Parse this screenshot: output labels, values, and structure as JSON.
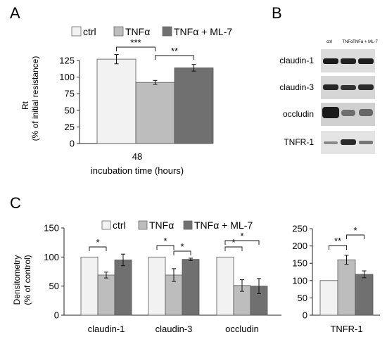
{
  "panel_labels": {
    "a": "A",
    "b": "B",
    "c": "C"
  },
  "colors": {
    "ctrl": "#f2f2f2",
    "tnf": "#bdbdbd",
    "ml7": "#707070",
    "axis": "#222222"
  },
  "legend": [
    "ctrl",
    "TNFα",
    "TNFα + ML-7"
  ],
  "blot": {
    "lane_labels": [
      "ctrl",
      "TNFα",
      "TNFα + ML-7"
    ],
    "rows": [
      "claudin-1",
      "claudin-3",
      "occludin",
      "TNFR-1"
    ]
  },
  "chart_data": [
    {
      "type": "bar",
      "panel": "A",
      "categories": [
        "48"
      ],
      "xlabel": "incubation time (hours)",
      "ylabel_main": "Rt",
      "ylabel_sub": "(% of initial resistance)",
      "ylim": [
        0,
        125
      ],
      "yticks": [
        "0",
        "25",
        "50",
        "75",
        "100",
        "125"
      ],
      "series": [
        {
          "name": "ctrl",
          "values": [
            127
          ],
          "errors": [
            7
          ]
        },
        {
          "name": "TNFα",
          "values": [
            92
          ],
          "errors": [
            3
          ]
        },
        {
          "name": "TNFα + ML-7",
          "values": [
            114
          ],
          "errors": [
            5
          ]
        }
      ],
      "significance": [
        {
          "from": 0,
          "to": 1,
          "label": "***"
        },
        {
          "from": 1,
          "to": 2,
          "label": "**"
        }
      ],
      "legend_position": "top"
    },
    {
      "type": "bar",
      "panel": "C",
      "categories": [
        "claudin-1",
        "claudin-3",
        "occludin"
      ],
      "ylabel_main": "Densitometry",
      "ylabel_sub": "(% of control)",
      "ylim": [
        0,
        150
      ],
      "yticks": [
        "0",
        "50",
        "100",
        "150"
      ],
      "series": [
        {
          "name": "ctrl",
          "values": [
            100,
            100,
            100
          ],
          "errors": [
            0,
            0,
            0
          ]
        },
        {
          "name": "TNFα",
          "values": [
            69,
            69,
            51
          ],
          "errors": [
            5,
            11,
            10
          ]
        },
        {
          "name": "TNFα + ML-7",
          "values": [
            95,
            96,
            50
          ],
          "errors": [
            10,
            2,
            13
          ]
        }
      ],
      "significance": [
        {
          "category": 0,
          "from": 0,
          "to": 1,
          "label": "*"
        },
        {
          "category": 1,
          "from": 0,
          "to": 1,
          "label": "*"
        },
        {
          "category": 1,
          "from": 1,
          "to": 2,
          "label": "*"
        },
        {
          "category": 2,
          "from": 0,
          "to": 1,
          "label": "*"
        },
        {
          "category": 2,
          "from": 0,
          "to": 2,
          "label": "*"
        }
      ],
      "legend_position": "top"
    },
    {
      "type": "bar",
      "panel": "C",
      "categories": [
        "TNFR-1"
      ],
      "ylim": [
        0,
        250
      ],
      "yticks": [
        "0",
        "50",
        "100",
        "150",
        "200",
        "250"
      ],
      "series": [
        {
          "name": "ctrl",
          "values": [
            100
          ],
          "errors": [
            0
          ]
        },
        {
          "name": "TNFα",
          "values": [
            160
          ],
          "errors": [
            13
          ]
        },
        {
          "name": "TNFα + ML-7",
          "values": [
            118
          ],
          "errors": [
            10
          ]
        }
      ],
      "significance": [
        {
          "category": 0,
          "from": 0,
          "to": 1,
          "label": "**"
        },
        {
          "category": 0,
          "from": 1,
          "to": 2,
          "label": "*"
        }
      ]
    }
  ]
}
